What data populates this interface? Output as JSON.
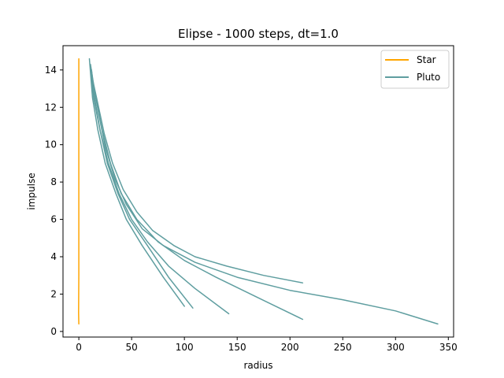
{
  "chart_data": {
    "type": "line",
    "title": "Elipse - 1000 steps, dt=1.0",
    "xlabel": "radius",
    "ylabel": "impulse",
    "xlim": [
      -15,
      355
    ],
    "ylim": [
      -0.3,
      15.3
    ],
    "x_ticks": [
      0,
      50,
      100,
      150,
      200,
      250,
      300,
      350
    ],
    "y_ticks": [
      0,
      2,
      4,
      6,
      8,
      10,
      12,
      14
    ],
    "grid": false,
    "legend_position": "top-right",
    "series": [
      {
        "name": "Star",
        "color": "#ffa500",
        "segments": [
          [
            [
              0,
              14.6
            ],
            [
              0,
              12
            ],
            [
              0,
              9
            ],
            [
              0,
              6
            ],
            [
              0,
              3
            ],
            [
              -0.2,
              1
            ],
            [
              0,
              0.4
            ]
          ]
        ]
      },
      {
        "name": "Pluto",
        "color": "#5f9ea0",
        "segments": [
          [
            [
              100,
              1.35
            ],
            [
              80,
              2.9
            ],
            [
              60,
              4.6
            ],
            [
              45,
              6.0
            ],
            [
              35,
              7.4
            ],
            [
              25,
              9.0
            ],
            [
              18,
              10.8
            ],
            [
              13,
              12.5
            ],
            [
              10,
              14.6
            ]
          ],
          [
            [
              108,
              1.25
            ],
            [
              85,
              2.9
            ],
            [
              65,
              4.6
            ],
            [
              48,
              6.0
            ],
            [
              37,
              7.4
            ],
            [
              27,
              9.0
            ],
            [
              20,
              10.8
            ],
            [
              14,
              12.5
            ],
            [
              11,
              14.2
            ]
          ],
          [
            [
              142,
              0.95
            ],
            [
              110,
              2.3
            ],
            [
              85,
              3.5
            ],
            [
              65,
              4.8
            ],
            [
              50,
              6.0
            ],
            [
              38,
              7.4
            ],
            [
              28,
              9.0
            ],
            [
              20,
              10.8
            ],
            [
              15,
              12.5
            ],
            [
              12,
              14.0
            ]
          ],
          [
            [
              212,
              0.65
            ],
            [
              170,
              1.8
            ],
            [
              130,
              2.9
            ],
            [
              100,
              3.8
            ],
            [
              75,
              4.8
            ],
            [
              55,
              6.0
            ],
            [
              40,
              7.4
            ],
            [
              30,
              9.0
            ],
            [
              22,
              10.8
            ],
            [
              16,
              12.5
            ],
            [
              12,
              13.8
            ]
          ],
          [
            [
              340,
              0.4
            ],
            [
              300,
              1.1
            ],
            [
              250,
              1.7
            ],
            [
              200,
              2.2
            ],
            [
              150,
              2.9
            ],
            [
              110,
              3.7
            ],
            [
              80,
              4.6
            ],
            [
              60,
              5.5
            ],
            [
              45,
              6.8
            ],
            [
              34,
              8.2
            ],
            [
              25,
              9.9
            ],
            [
              19,
              11.6
            ],
            [
              14,
              13.2
            ],
            [
              11,
              14.3
            ]
          ],
          [
            [
              212,
              2.6
            ],
            [
              175,
              3.0
            ],
            [
              140,
              3.5
            ],
            [
              110,
              4.0
            ],
            [
              90,
              4.6
            ],
            [
              70,
              5.4
            ],
            [
              55,
              6.4
            ],
            [
              42,
              7.6
            ],
            [
              32,
              9.0
            ],
            [
              24,
              10.6
            ],
            [
              18,
              12.2
            ],
            [
              13,
              13.5
            ],
            [
              11,
              14.0
            ]
          ]
        ]
      }
    ]
  }
}
